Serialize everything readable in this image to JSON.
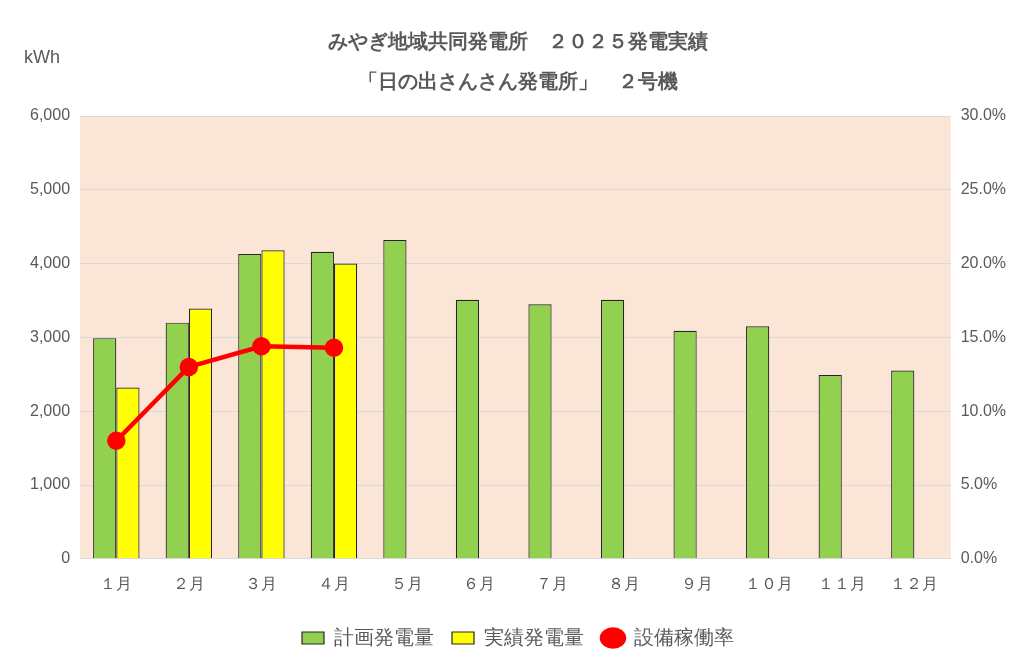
{
  "chart_data": {
    "type": "bar",
    "title": "みやぎ地域共同発電所　２０２５発電実績",
    "subtitle": "「日の出さんさん発電所」　２号機",
    "ylabel": "kWh",
    "categories": [
      "１月",
      "２月",
      "３月",
      "４月",
      "５月",
      "６月",
      "７月",
      "８月",
      "９月",
      "１０月",
      "１１月",
      "１２月"
    ],
    "series": [
      {
        "name": "計画発電量",
        "color": "#92d050",
        "values": [
          2990,
          3200,
          4130,
          4160,
          4320,
          3510,
          3450,
          3510,
          3090,
          3150,
          2490,
          2550
        ]
      },
      {
        "name": "実績発電量",
        "color": "#ffff00",
        "values": [
          2320,
          3390,
          4180,
          4000,
          null,
          null,
          null,
          null,
          null,
          null,
          null,
          null
        ]
      },
      {
        "name": "設備稼働率",
        "type": "line",
        "axis": "y2",
        "color": "#ff0000",
        "values": [
          8.0,
          13.0,
          14.4,
          14.3,
          null,
          null,
          null,
          null,
          null,
          null,
          null,
          null
        ]
      }
    ],
    "ylim": [
      0,
      6000
    ],
    "yticks": [
      0,
      {
        "value": 1000,
        "label": "1,000"
      },
      {
        "value": 2000,
        "label": "2,000"
      },
      {
        "value": 3000,
        "label": "3,000"
      },
      {
        "value": 4000,
        "label": "4,000"
      },
      {
        "value": 5000,
        "label": "5,000"
      },
      {
        "value": 6000,
        "label": "6,000"
      }
    ],
    "y2lim": [
      0,
      30
    ],
    "y2ticks": [
      {
        "value": 0,
        "label": "0.0%"
      },
      {
        "value": 5,
        "label": "5.0%"
      },
      {
        "value": 10,
        "label": "10.0%"
      },
      {
        "value": 15,
        "label": "15.0%"
      },
      {
        "value": 20,
        "label": "20.0%"
      },
      {
        "value": 25,
        "label": "25.0%"
      },
      {
        "value": 30,
        "label": "30.0%"
      }
    ],
    "grid": "y",
    "legend": "bottom",
    "marker": "circle"
  }
}
